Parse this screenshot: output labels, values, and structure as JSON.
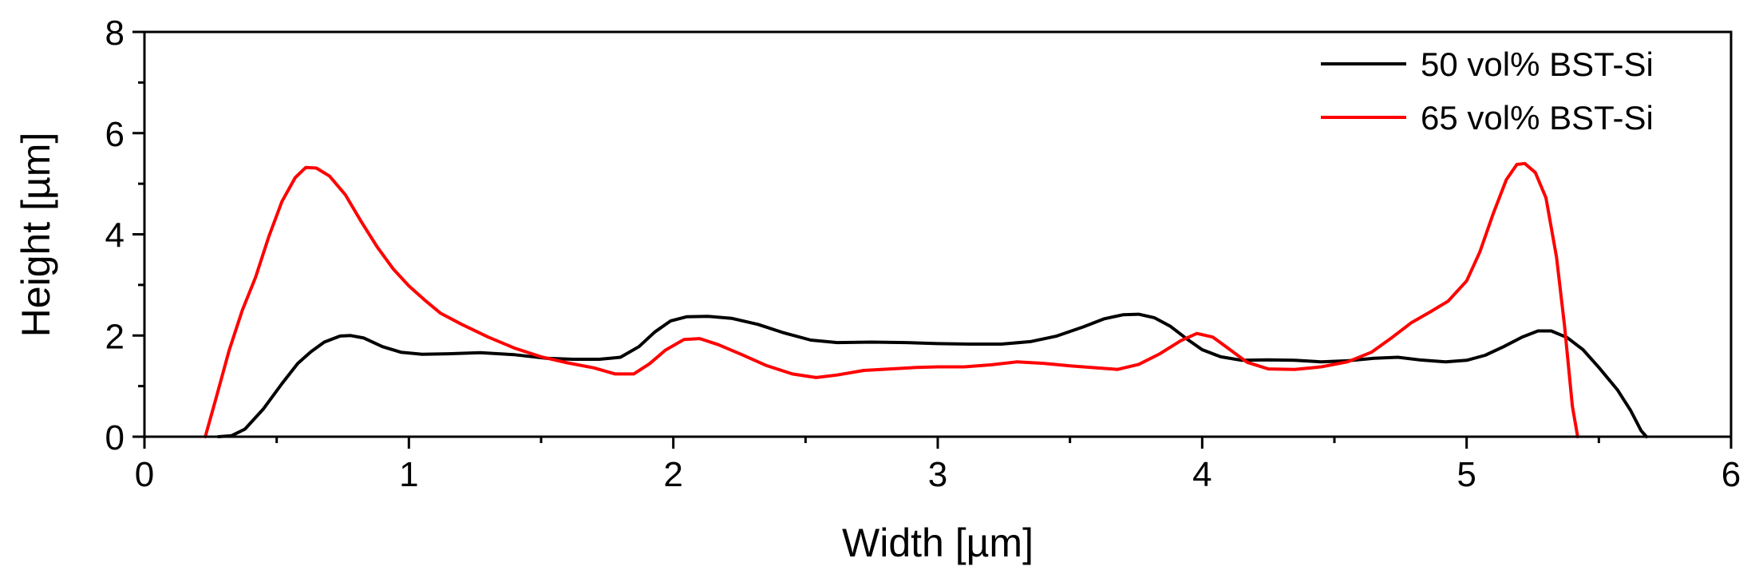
{
  "chart_data": {
    "type": "line",
    "xlabel": "Width [µm]",
    "ylabel": "Height [µm]",
    "xlim": [
      0,
      6
    ],
    "ylim": [
      0,
      8
    ],
    "x_ticks": [
      "0",
      "1",
      "2",
      "3",
      "4",
      "5",
      "6"
    ],
    "y_ticks": [
      "0",
      "2",
      "4",
      "6",
      "8"
    ],
    "legend_position": "top-right",
    "grid": false,
    "series": [
      {
        "name": "50 vol% BST-Si",
        "color": "#000000",
        "points": [
          [
            0.28,
            0.0
          ],
          [
            0.33,
            0.02
          ],
          [
            0.38,
            0.15
          ],
          [
            0.45,
            0.55
          ],
          [
            0.52,
            1.05
          ],
          [
            0.58,
            1.45
          ],
          [
            0.63,
            1.68
          ],
          [
            0.68,
            1.87
          ],
          [
            0.74,
            1.99
          ],
          [
            0.78,
            2.0
          ],
          [
            0.83,
            1.95
          ],
          [
            0.9,
            1.78
          ],
          [
            0.97,
            1.67
          ],
          [
            1.05,
            1.63
          ],
          [
            1.15,
            1.64
          ],
          [
            1.27,
            1.66
          ],
          [
            1.4,
            1.62
          ],
          [
            1.52,
            1.55
          ],
          [
            1.62,
            1.53
          ],
          [
            1.72,
            1.53
          ],
          [
            1.8,
            1.57
          ],
          [
            1.87,
            1.78
          ],
          [
            1.93,
            2.07
          ],
          [
            1.99,
            2.29
          ],
          [
            2.05,
            2.37
          ],
          [
            2.13,
            2.38
          ],
          [
            2.22,
            2.34
          ],
          [
            2.32,
            2.22
          ],
          [
            2.42,
            2.05
          ],
          [
            2.52,
            1.91
          ],
          [
            2.62,
            1.86
          ],
          [
            2.75,
            1.87
          ],
          [
            2.88,
            1.86
          ],
          [
            3.0,
            1.84
          ],
          [
            3.12,
            1.83
          ],
          [
            3.24,
            1.83
          ],
          [
            3.35,
            1.88
          ],
          [
            3.45,
            1.99
          ],
          [
            3.55,
            2.17
          ],
          [
            3.63,
            2.33
          ],
          [
            3.7,
            2.41
          ],
          [
            3.76,
            2.42
          ],
          [
            3.82,
            2.35
          ],
          [
            3.88,
            2.18
          ],
          [
            3.94,
            1.94
          ],
          [
            4.0,
            1.72
          ],
          [
            4.07,
            1.58
          ],
          [
            4.15,
            1.51
          ],
          [
            4.25,
            1.52
          ],
          [
            4.35,
            1.51
          ],
          [
            4.45,
            1.48
          ],
          [
            4.55,
            1.5
          ],
          [
            4.65,
            1.55
          ],
          [
            4.74,
            1.57
          ],
          [
            4.82,
            1.52
          ],
          [
            4.92,
            1.48
          ],
          [
            5.0,
            1.51
          ],
          [
            5.07,
            1.61
          ],
          [
            5.14,
            1.78
          ],
          [
            5.21,
            1.97
          ],
          [
            5.27,
            2.09
          ],
          [
            5.32,
            2.09
          ],
          [
            5.38,
            1.96
          ],
          [
            5.44,
            1.72
          ],
          [
            5.5,
            1.37
          ],
          [
            5.57,
            0.93
          ],
          [
            5.62,
            0.52
          ],
          [
            5.66,
            0.12
          ],
          [
            5.68,
            0.0
          ]
        ]
      },
      {
        "name": "65 vol% BST-Si",
        "color": "#ff0000",
        "points": [
          [
            0.23,
            0.0
          ],
          [
            0.27,
            0.75
          ],
          [
            0.32,
            1.7
          ],
          [
            0.37,
            2.5
          ],
          [
            0.42,
            3.15
          ],
          [
            0.47,
            3.95
          ],
          [
            0.52,
            4.65
          ],
          [
            0.57,
            5.12
          ],
          [
            0.61,
            5.32
          ],
          [
            0.65,
            5.31
          ],
          [
            0.7,
            5.15
          ],
          [
            0.76,
            4.78
          ],
          [
            0.82,
            4.25
          ],
          [
            0.88,
            3.75
          ],
          [
            0.94,
            3.32
          ],
          [
            1.0,
            2.98
          ],
          [
            1.06,
            2.7
          ],
          [
            1.12,
            2.44
          ],
          [
            1.2,
            2.22
          ],
          [
            1.3,
            1.97
          ],
          [
            1.4,
            1.75
          ],
          [
            1.5,
            1.58
          ],
          [
            1.6,
            1.46
          ],
          [
            1.7,
            1.36
          ],
          [
            1.78,
            1.24
          ],
          [
            1.85,
            1.24
          ],
          [
            1.91,
            1.44
          ],
          [
            1.97,
            1.71
          ],
          [
            2.04,
            1.92
          ],
          [
            2.1,
            1.94
          ],
          [
            2.17,
            1.82
          ],
          [
            2.26,
            1.62
          ],
          [
            2.35,
            1.41
          ],
          [
            2.45,
            1.24
          ],
          [
            2.54,
            1.17
          ],
          [
            2.62,
            1.22
          ],
          [
            2.72,
            1.31
          ],
          [
            2.82,
            1.34
          ],
          [
            2.92,
            1.37
          ],
          [
            3.0,
            1.38
          ],
          [
            3.1,
            1.38
          ],
          [
            3.2,
            1.42
          ],
          [
            3.3,
            1.48
          ],
          [
            3.4,
            1.45
          ],
          [
            3.5,
            1.4
          ],
          [
            3.6,
            1.36
          ],
          [
            3.68,
            1.33
          ],
          [
            3.76,
            1.43
          ],
          [
            3.84,
            1.64
          ],
          [
            3.92,
            1.9
          ],
          [
            3.98,
            2.04
          ],
          [
            4.04,
            1.97
          ],
          [
            4.1,
            1.74
          ],
          [
            4.17,
            1.47
          ],
          [
            4.25,
            1.34
          ],
          [
            4.35,
            1.33
          ],
          [
            4.45,
            1.38
          ],
          [
            4.55,
            1.48
          ],
          [
            4.64,
            1.67
          ],
          [
            4.72,
            1.97
          ],
          [
            4.79,
            2.25
          ],
          [
            4.86,
            2.46
          ],
          [
            4.93,
            2.68
          ],
          [
            5.0,
            3.08
          ],
          [
            5.05,
            3.65
          ],
          [
            5.1,
            4.4
          ],
          [
            5.15,
            5.08
          ],
          [
            5.19,
            5.38
          ],
          [
            5.22,
            5.4
          ],
          [
            5.26,
            5.22
          ],
          [
            5.3,
            4.72
          ],
          [
            5.34,
            3.55
          ],
          [
            5.37,
            2.2
          ],
          [
            5.4,
            0.6
          ],
          [
            5.42,
            0.0
          ]
        ]
      }
    ]
  }
}
